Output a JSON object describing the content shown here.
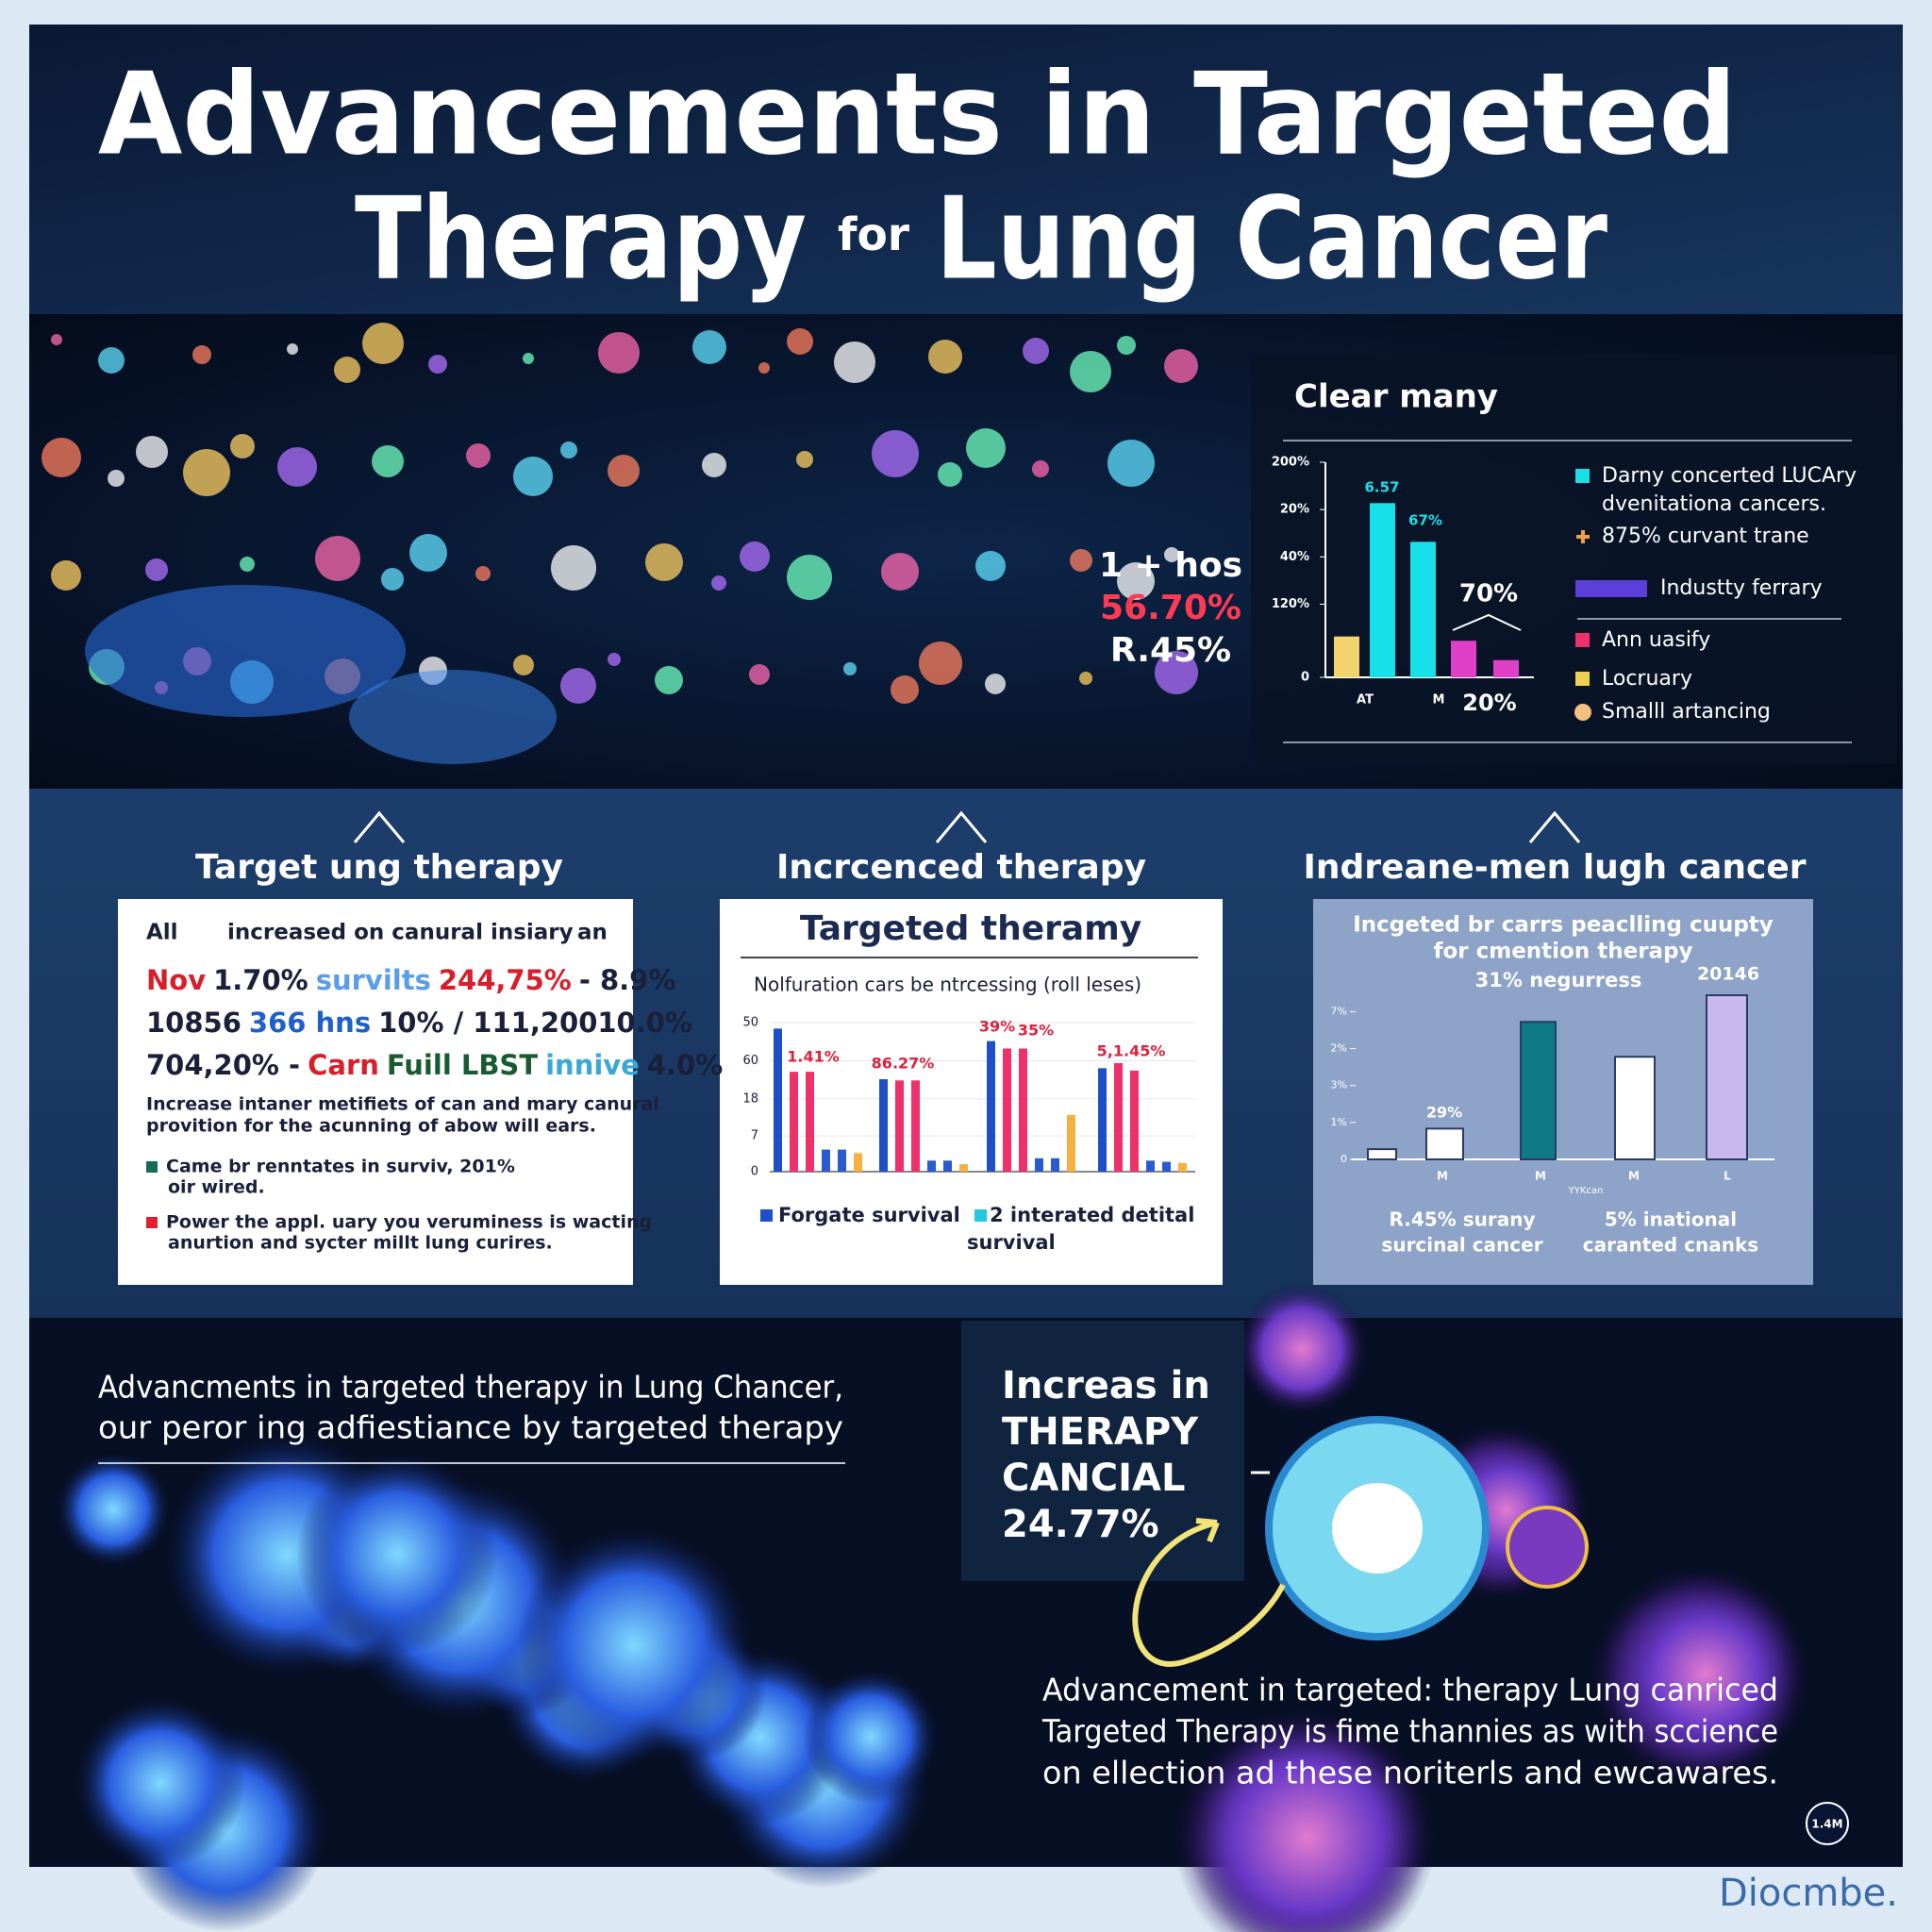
{
  "header": {
    "line1": "Advancements in  Targeted",
    "line2_start": "Therapy",
    "line2_small": "for",
    "line2_end": "Lung Cancer"
  },
  "hero": {
    "stats": [
      "1 + hos",
      "56.70%",
      "R.45%"
    ]
  },
  "top_chart": {
    "title": "Clear many",
    "ylim": [
      0,
      100
    ],
    "yticks": [
      {
        "value": 100,
        "label": "200%"
      },
      {
        "value": 78,
        "label": "20%"
      },
      {
        "value": 56,
        "label": "40%"
      },
      {
        "value": 34,
        "label": "120%"
      },
      0
    ],
    "bars": [
      {
        "value": 19,
        "color": "#f3d36b"
      },
      {
        "value": 81,
        "color": "#18e0e8"
      },
      {
        "value": 63,
        "color": "#18e0e8"
      },
      {
        "value": 17,
        "color": "#e040c8"
      },
      {
        "value": 8,
        "color": "#e040c8"
      }
    ],
    "annotations": [
      "6.57",
      "67%",
      "70%"
    ],
    "x_labels": [
      "AT",
      "M",
      "20%"
    ],
    "legend": [
      {
        "text": [
          "Darny concerted LUCAry",
          "dvenitationa cancers."
        ],
        "color": "#18e0e8",
        "marker": "square"
      },
      {
        "text": [
          "875% curvant trane"
        ],
        "color": "#f0a040",
        "marker": "plus"
      },
      {
        "text": [
          "Industty ferrary"
        ],
        "color": "#5a3fd8",
        "marker": "wide"
      },
      {
        "text": [
          "Ann uasify"
        ],
        "color": "#f0306a",
        "marker": "square"
      },
      {
        "text": [
          "Locruary"
        ],
        "color": "#f0d050",
        "marker": "square"
      },
      {
        "text": [
          "Smalll artancing"
        ],
        "color": "#f2c080",
        "marker": "circle"
      }
    ]
  },
  "columns": [
    "Target ung therapy",
    "Incrcenced therapy",
    "Indreane-men lugh cancer"
  ],
  "panel1": {
    "header": [
      "All",
      "increased on canural insiary",
      "an"
    ],
    "rows": [
      [
        {
          "t": "Nov",
          "c": "#d81e2a"
        },
        {
          "t": "1.70%",
          "c": "#1a1f3a"
        },
        {
          "t": "survilts",
          "c": "#5a9ee8"
        },
        {
          "t": "244,75%",
          "c": "#d81e2a"
        },
        {
          "t": "- 8.9%",
          "c": "#1a1f3a"
        }
      ],
      [
        {
          "t": "10856",
          "c": "#1a1f3a"
        },
        {
          "t": "366 hns",
          "c": "#1f5fc8"
        },
        {
          "t": "10% / 111,20010.0%",
          "c": "#1a1f3a"
        }
      ],
      [
        {
          "t": "704,20% -",
          "c": "#1a1f3a"
        },
        {
          "t": "Carn",
          "c": "#d81e2a"
        },
        {
          "t": "Fuill LBST",
          "c": "#1a5a30"
        },
        {
          "t": "innive",
          "c": "#38a8d8"
        },
        {
          "t": "4.0%",
          "c": "#1a1f3a"
        }
      ]
    ],
    "paragraph": [
      "Increase intaner metifiets of can and mary canural",
      "provition for the acunning of abow will ears."
    ],
    "bullets": [
      {
        "color": "#1a6a5a",
        "lines": [
          "Came br renntates in surviv, 201%",
          "oir wired."
        ]
      },
      {
        "color": "#e02030",
        "lines": [
          "Power the appl. uary you veruminess is wacting",
          "anurtion and sycter millt lung curires."
        ]
      }
    ]
  },
  "panel2": {
    "title": "Targeted theramy",
    "subtitle": "Nolfuration cars be ntrcessing (roll leses)",
    "ylim": [
      0,
      50
    ],
    "yticks": [
      50,
      {
        "value": 37.2,
        "label": "60"
      },
      {
        "value": 24.4,
        "label": "18"
      },
      {
        "value": 12,
        "label": "7"
      },
      0
    ],
    "series": [
      {
        "color": "#1f4fc8",
        "values": [
          48,
          31,
          43.8,
          34.7
        ]
      },
      {
        "color": "#f0306a",
        "values": [
          33.5,
          30.6,
          41.3,
          36.4
        ]
      },
      {
        "color": "#f0306a",
        "values": [
          33.5,
          30.6,
          41.3,
          33.9
        ]
      },
      {
        "color": "#2a5ad0",
        "values": [
          7.4,
          3.7,
          4.5,
          3.7
        ]
      },
      {
        "color": "#2a5ad0",
        "values": [
          7.4,
          3.7,
          4.5,
          3.3
        ]
      },
      {
        "color": "#f5b040",
        "values": [
          6.2,
          2.5,
          19,
          2.9
        ]
      }
    ],
    "annotations": [
      "1.41%",
      "86.27%",
      "39%",
      "35%",
      "5,1.45%"
    ],
    "legend": [
      {
        "name": [
          "Forgate survival"
        ],
        "color": "#1f4fc8"
      },
      {
        "name": [
          "2 interated detital",
          "survival"
        ],
        "color": "#22c8e0"
      }
    ]
  },
  "panel3": {
    "title": [
      "Incgeted br carrs peaclling cuupty",
      "for cmention therapy"
    ],
    "subtitle": "31% negurress",
    "corner": "20146",
    "ylim": [
      0,
      8
    ],
    "yticks": [
      {
        "value": 7.2,
        "label": "7%"
      },
      {
        "value": 5.4,
        "label": "2%"
      },
      {
        "value": 3.6,
        "label": "3%"
      },
      {
        "value": 1.8,
        "label": "1%"
      },
      0
    ],
    "bars": [
      {
        "value": 0.5,
        "color": "#ffffff"
      },
      {
        "value": 1.5,
        "color": "#ffffff"
      },
      {
        "value": 6.7,
        "color": "#0e7a86"
      },
      {
        "value": 5.0,
        "color": "#ffffff"
      },
      {
        "value": 8.0,
        "color": "#c9b8ee"
      }
    ],
    "annotation": "29%",
    "x_labels": [
      "M",
      "M",
      "M",
      "L"
    ],
    "x_note": "YYKcan",
    "captions": [
      [
        "R.45% surany",
        "surcinal cancer"
      ],
      [
        "5% inational",
        "caranted cnanks"
      ]
    ]
  },
  "bottom": {
    "left_caption": [
      "Advancments in targeted therapy in Lung Chancer,",
      "our peror ing adfiestiance by targeted therapy"
    ],
    "callout": [
      "Increas in",
      "THERAPY",
      "CANCIAL",
      "24.77%"
    ],
    "text": [
      "Advancement in targeted: therapy Lung canriced",
      "Targeted Therapy is fime thannies as with sccience",
      "on ellection ad these noriterls and ewcawares."
    ],
    "badge": "1.4M",
    "footer": "Diocmbe."
  }
}
